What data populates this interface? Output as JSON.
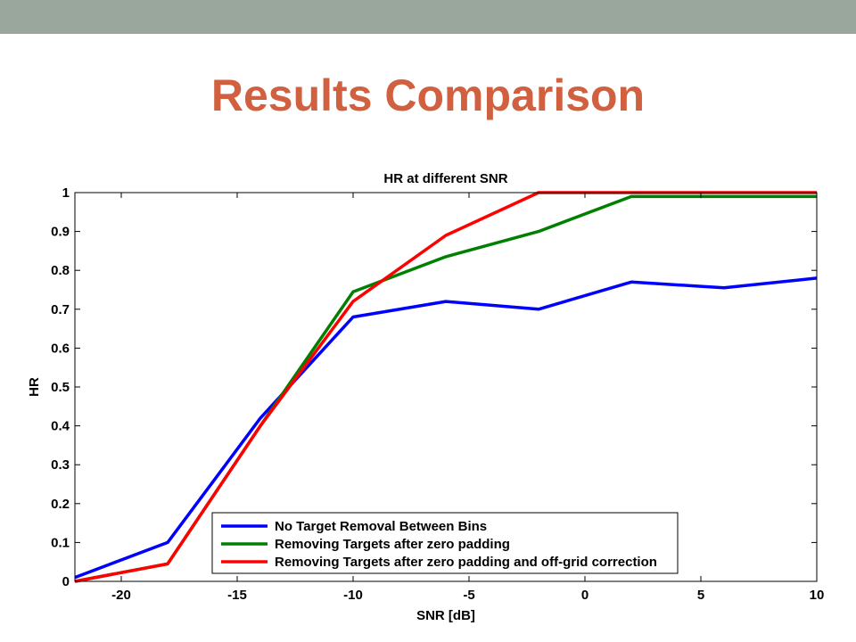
{
  "slide": {
    "title": "Results Comparison",
    "title_color": "#d0603f",
    "bar_color": "#9aa79c"
  },
  "chart_data": {
    "type": "line",
    "title": "HR at different SNR",
    "xlabel": "SNR [dB]",
    "ylabel": "HR",
    "xlim": [
      -22,
      10
    ],
    "ylim": [
      0,
      1
    ],
    "xticks": [
      -20,
      -15,
      -10,
      -5,
      0,
      5,
      10
    ],
    "xtick_labels": [
      "-20",
      "-15",
      "-10",
      "-5",
      "0",
      "5",
      "10"
    ],
    "yticks": [
      0,
      0.1,
      0.2,
      0.3,
      0.4,
      0.5,
      0.6,
      0.7,
      0.8,
      0.9,
      1
    ],
    "ytick_labels": [
      "0",
      "0.1",
      "0.2",
      "0.3",
      "0.4",
      "0.5",
      "0.6",
      "0.7",
      "0.8",
      "0.9",
      "1"
    ],
    "grid": false,
    "legend_position": "bottom-right",
    "x": [
      -22,
      -18,
      -14,
      -10,
      -6,
      -2,
      2,
      6,
      10
    ],
    "series": [
      {
        "name": "No Target Removal Between Bins",
        "color": "#0000ff",
        "values": [
          0.01,
          0.1,
          0.42,
          0.68,
          0.72,
          0.7,
          0.77,
          0.755,
          0.78
        ]
      },
      {
        "name": "Removing Targets after zero padding",
        "color": "#008000",
        "values": [
          0.0,
          0.045,
          0.4,
          0.745,
          0.835,
          0.9,
          0.99,
          0.99,
          0.99
        ]
      },
      {
        "name": "Removing Targets after zero padding and off-grid correction",
        "color": "#ff0000",
        "values": [
          0.0,
          0.045,
          0.4,
          0.72,
          0.89,
          1.0,
          1.0,
          1.0,
          1.0
        ]
      }
    ]
  }
}
